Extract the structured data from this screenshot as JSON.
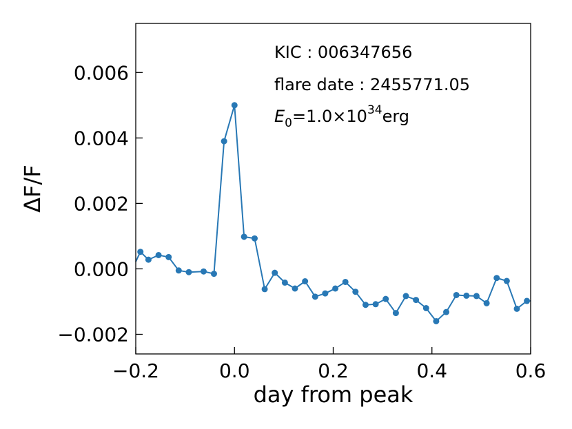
{
  "chart_data": {
    "type": "line",
    "xlabel": "day from peak",
    "ylabel": "ΔF/F",
    "xlim": [
      -0.2,
      0.6
    ],
    "ylim": [
      -0.0026,
      0.0075
    ],
    "xticks": [
      -0.2,
      0.0,
      0.2,
      0.4,
      0.6
    ],
    "xtick_labels": [
      "−0.2",
      "0.0",
      "0.2",
      "0.4",
      "0.6"
    ],
    "yticks": [
      -0.002,
      0.0,
      0.002,
      0.004,
      0.006
    ],
    "ytick_labels": [
      "−0.002",
      "0.000",
      "0.002",
      "0.004",
      "0.006"
    ],
    "grid": false,
    "color": "#2878b5",
    "annotations": {
      "kic": "KIC : 006347656",
      "flare_date": "flare date : 2455771.05",
      "energy_symbol": "E",
      "energy_sub": "0",
      "energy_mid": "=1.0×10",
      "energy_exp": "34",
      "energy_unit": "erg"
    },
    "series": [
      {
        "x": [
          -0.2,
          -0.1906,
          -0.1743,
          -0.1538,
          -0.1334,
          -0.113,
          -0.0925,
          -0.0625,
          -0.0416,
          -0.0211,
          0.0,
          0.0194,
          0.0408,
          0.0612,
          0.0816,
          0.1021,
          0.1225,
          0.143,
          0.1634,
          0.1838,
          0.2043,
          0.2247,
          0.2451,
          0.2656,
          0.286,
          0.3064,
          0.3269,
          0.3473,
          0.3677,
          0.3882,
          0.4086,
          0.429,
          0.4495,
          0.4699,
          0.4903,
          0.5108,
          0.5312,
          0.5516,
          0.5721,
          0.5925,
          0.6
        ],
        "y": [
          0.00022,
          0.00052,
          0.00028,
          0.00042,
          0.00036,
          -5e-05,
          -0.0001,
          -8e-05,
          -0.00015,
          0.0039,
          0.005,
          0.00098,
          0.00093,
          -0.00062,
          -0.00012,
          -0.00042,
          -0.0006,
          -0.00038,
          -0.00085,
          -0.00075,
          -0.0006,
          -0.0004,
          -0.0007,
          -0.0011,
          -0.00108,
          -0.00092,
          -0.00135,
          -0.00083,
          -0.00095,
          -0.0012,
          -0.0016,
          -0.00132,
          -0.0008,
          -0.00082,
          -0.00083,
          -0.00105,
          -0.00028,
          -0.00037,
          -0.00122,
          -0.00098,
          -0.00098
        ]
      }
    ]
  }
}
